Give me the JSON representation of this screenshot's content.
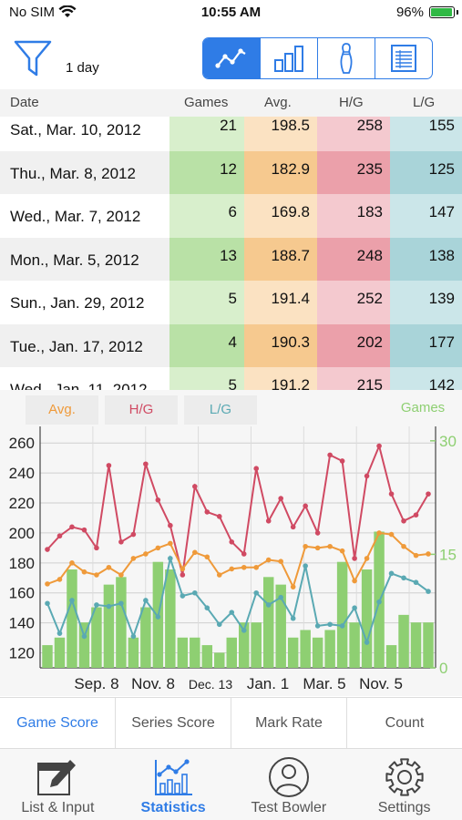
{
  "status": {
    "carrier": "No SIM",
    "time": "10:55 AM",
    "battery": "96%"
  },
  "toolbar": {
    "period": "1 day",
    "view_modes": [
      "line-chart-icon",
      "bar-chart-icon",
      "pin-icon",
      "list-icon"
    ],
    "selected_mode": 0
  },
  "table": {
    "headers": {
      "date": "Date",
      "games": "Games",
      "avg": "Avg.",
      "hg": "H/G",
      "lg": "L/G"
    },
    "rows": [
      {
        "date": "Sat., Mar. 10, 2012",
        "games": "21",
        "avg": "198.5",
        "hg": "258",
        "lg": "155"
      },
      {
        "date": "Thu., Mar.  8, 2012",
        "games": "12",
        "avg": "182.9",
        "hg": "235",
        "lg": "125"
      },
      {
        "date": "Wed., Mar.  7, 2012",
        "games": "6",
        "avg": "169.8",
        "hg": "183",
        "lg": "147"
      },
      {
        "date": "Mon., Mar.  5, 2012",
        "games": "13",
        "avg": "188.7",
        "hg": "248",
        "lg": "138"
      },
      {
        "date": "Sun., Jan. 29, 2012",
        "games": "5",
        "avg": "191.4",
        "hg": "252",
        "lg": "139"
      },
      {
        "date": "Tue., Jan. 17, 2012",
        "games": "4",
        "avg": "190.3",
        "hg": "202",
        "lg": "177"
      },
      {
        "date": "Wed., Jan. 11, 2012",
        "games": "5",
        "avg": "191.2",
        "hg": "215",
        "lg": "142"
      }
    ]
  },
  "legend": {
    "avg": "Avg.",
    "hg": "H/G",
    "lg": "L/G",
    "games": "Games"
  },
  "colors": {
    "accent": "#2f7ce6",
    "games": "#8ecf72",
    "avg": "#ef9a3a",
    "hg": "#d04a63",
    "lg": "#5aa9b3",
    "games_light": "#d8efcc",
    "games_dark": "#b9e1a6",
    "avg_light": "#fbe2c2",
    "avg_dark": "#f6c98f",
    "hg_light": "#f4c9cf",
    "hg_dark": "#eba0aa",
    "lg_light": "#cbe6e9",
    "lg_dark": "#a9d4d9"
  },
  "chart_data": {
    "type": "line",
    "x_tick_labels": [
      "Sep. 8",
      "Nov. 8",
      "Dec. 13",
      "Jan. 1",
      "Mar. 5",
      "Nov. 5"
    ],
    "y_left": {
      "ticks": [
        120,
        140,
        160,
        180,
        200,
        220,
        240,
        260
      ],
      "ylim": [
        110,
        265
      ]
    },
    "y_right": {
      "ticks": [
        0,
        15,
        30
      ],
      "ylim": [
        0,
        30.7
      ]
    },
    "grid": true,
    "series": [
      {
        "name": "H/G",
        "axis": "left",
        "values": [
          189,
          198,
          204,
          202,
          190,
          245,
          194,
          199,
          246,
          222,
          205,
          172,
          231,
          214,
          211,
          194,
          186,
          243,
          208,
          223,
          204,
          218,
          200,
          252,
          248,
          183,
          238,
          258,
          226,
          208,
          212,
          226
        ]
      },
      {
        "name": "Avg.",
        "axis": "left",
        "values": [
          166,
          169,
          180,
          174,
          172,
          177,
          172,
          183,
          186,
          190,
          193,
          176,
          187,
          184,
          172,
          176,
          177,
          177,
          182,
          181,
          164,
          191,
          190,
          191,
          188,
          168,
          183,
          200,
          199,
          191,
          185,
          186
        ]
      },
      {
        "name": "L/G",
        "axis": "left",
        "values": [
          153,
          133,
          155,
          131,
          152,
          151,
          153,
          131,
          155,
          144,
          183,
          158,
          160,
          150,
          139,
          147,
          135,
          160,
          152,
          157,
          143,
          178,
          138,
          139,
          138,
          150,
          127,
          154,
          173,
          170,
          167,
          161
        ]
      },
      {
        "name": "Games",
        "axis": "right",
        "type": "bar",
        "values": [
          3,
          4,
          13,
          6,
          8,
          11,
          12,
          4,
          8,
          14,
          13,
          4,
          4,
          3,
          2,
          4,
          6,
          6,
          12,
          11,
          4,
          5,
          4,
          5,
          14,
          6,
          13,
          18,
          3,
          7,
          6,
          6
        ]
      }
    ]
  },
  "tabs": [
    "Game Score",
    "Series Score",
    "Mark Rate",
    "Count"
  ],
  "nav": [
    {
      "label": "List & Input",
      "icon": "edit-icon"
    },
    {
      "label": "Statistics",
      "icon": "statistics-icon"
    },
    {
      "label": "Test Bowler",
      "icon": "person-icon"
    },
    {
      "label": "Settings",
      "icon": "gear-icon"
    }
  ],
  "active_nav": 1
}
